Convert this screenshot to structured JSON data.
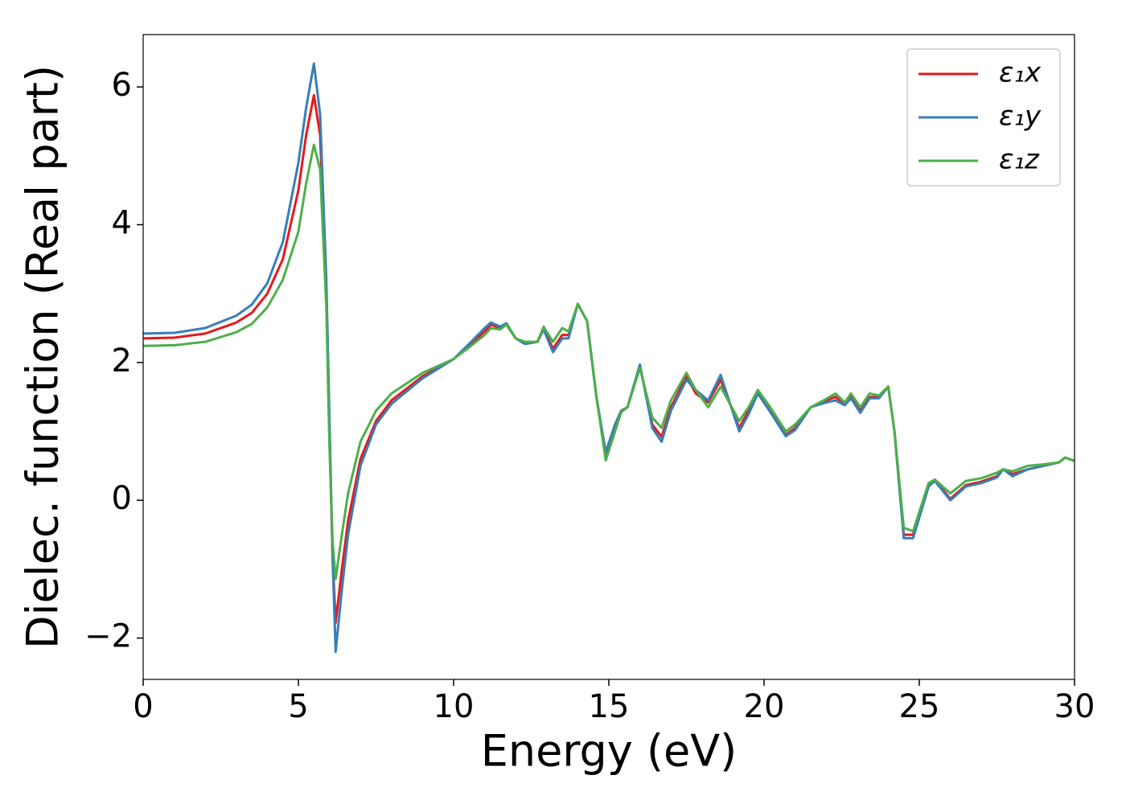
{
  "chart_data": {
    "type": "line",
    "xlabel": "Energy (eV)",
    "ylabel": "Dielec. function (Real part)",
    "x": [
      0,
      1,
      2,
      3,
      3.5,
      4,
      4.5,
      5,
      5.25,
      5.5,
      5.7,
      5.9,
      6.0,
      6.1,
      6.2,
      6.4,
      6.6,
      7,
      7.5,
      8,
      9,
      10,
      10.5,
      11,
      11.2,
      11.5,
      11.7,
      12,
      12.3,
      12.7,
      12.9,
      13.2,
      13.5,
      13.7,
      14,
      14.3,
      14.6,
      14.9,
      15.2,
      15.4,
      15.6,
      16,
      16.4,
      16.7,
      17,
      17.5,
      17.8,
      18.2,
      18.6,
      19.2,
      19.5,
      19.8,
      20.2,
      20.7,
      21,
      21.5,
      22,
      22.3,
      22.6,
      22.8,
      23.1,
      23.4,
      23.7,
      24,
      24.2,
      24.5,
      24.8,
      25.3,
      25.5,
      26,
      26.5,
      27,
      27.5,
      27.7,
      28,
      28.5,
      29,
      29.5,
      29.7,
      30
    ],
    "series": [
      {
        "name": "ε₁x",
        "color": "#e41a1c",
        "values": [
          2.35,
          2.36,
          2.42,
          2.58,
          2.72,
          3.0,
          3.5,
          4.5,
          5.3,
          5.88,
          5.3,
          3.0,
          1.0,
          -0.8,
          -1.78,
          -1.0,
          -0.3,
          0.6,
          1.15,
          1.45,
          1.8,
          2.05,
          2.25,
          2.45,
          2.55,
          2.5,
          2.55,
          2.35,
          2.27,
          2.3,
          2.5,
          2.2,
          2.4,
          2.4,
          2.85,
          2.6,
          1.5,
          0.65,
          1.1,
          1.3,
          1.35,
          1.95,
          1.1,
          0.92,
          1.35,
          1.8,
          1.55,
          1.42,
          1.75,
          1.05,
          1.3,
          1.55,
          1.3,
          0.95,
          1.05,
          1.35,
          1.45,
          1.5,
          1.4,
          1.5,
          1.3,
          1.5,
          1.5,
          1.65,
          1.0,
          -0.5,
          -0.5,
          0.2,
          0.3,
          0.02,
          0.22,
          0.27,
          0.35,
          0.45,
          0.38,
          0.45,
          0.5,
          0.55,
          0.62,
          0.57
        ]
      },
      {
        "name": "ε₁y",
        "color": "#377eb8",
        "values": [
          2.42,
          2.43,
          2.5,
          2.68,
          2.84,
          3.15,
          3.75,
          4.9,
          5.7,
          6.34,
          5.6,
          3.2,
          1.2,
          -0.8,
          -2.2,
          -1.3,
          -0.5,
          0.5,
          1.1,
          1.4,
          1.77,
          2.05,
          2.27,
          2.5,
          2.58,
          2.52,
          2.57,
          2.35,
          2.27,
          2.3,
          2.48,
          2.15,
          2.35,
          2.35,
          2.85,
          2.6,
          1.5,
          0.7,
          1.1,
          1.3,
          1.35,
          1.97,
          1.05,
          0.85,
          1.3,
          1.75,
          1.6,
          1.45,
          1.82,
          1.0,
          1.25,
          1.55,
          1.28,
          0.93,
          1.02,
          1.35,
          1.42,
          1.45,
          1.38,
          1.48,
          1.27,
          1.48,
          1.48,
          1.65,
          1.0,
          -0.55,
          -0.55,
          0.2,
          0.28,
          0.0,
          0.2,
          0.25,
          0.33,
          0.45,
          0.35,
          0.45,
          0.5,
          0.55,
          0.62,
          0.57
        ]
      },
      {
        "name": "ε₁z",
        "color": "#4daf4a",
        "values": [
          2.24,
          2.25,
          2.3,
          2.44,
          2.56,
          2.8,
          3.2,
          3.9,
          4.6,
          5.16,
          4.8,
          2.8,
          0.8,
          -0.6,
          -1.14,
          -0.5,
          0.1,
          0.85,
          1.3,
          1.55,
          1.85,
          2.05,
          2.22,
          2.4,
          2.5,
          2.48,
          2.55,
          2.35,
          2.3,
          2.3,
          2.52,
          2.3,
          2.5,
          2.45,
          2.85,
          2.6,
          1.5,
          0.58,
          1.0,
          1.28,
          1.35,
          1.92,
          1.2,
          1.05,
          1.45,
          1.85,
          1.6,
          1.35,
          1.65,
          1.15,
          1.35,
          1.6,
          1.35,
          1.0,
          1.1,
          1.35,
          1.47,
          1.55,
          1.42,
          1.55,
          1.35,
          1.55,
          1.52,
          1.65,
          1.0,
          -0.4,
          -0.45,
          0.25,
          0.3,
          0.1,
          0.28,
          0.32,
          0.4,
          0.45,
          0.42,
          0.5,
          0.52,
          0.55,
          0.62,
          0.57
        ]
      }
    ],
    "xlim": [
      0,
      30
    ],
    "xticks": [
      0,
      5,
      10,
      15,
      20,
      25,
      30
    ],
    "ylim": [
      -2.6,
      6.76
    ],
    "yticks": [
      {
        "value": -2,
        "label": "−2"
      },
      0,
      2,
      4,
      6
    ],
    "grid": false,
    "legend": "upper right"
  }
}
